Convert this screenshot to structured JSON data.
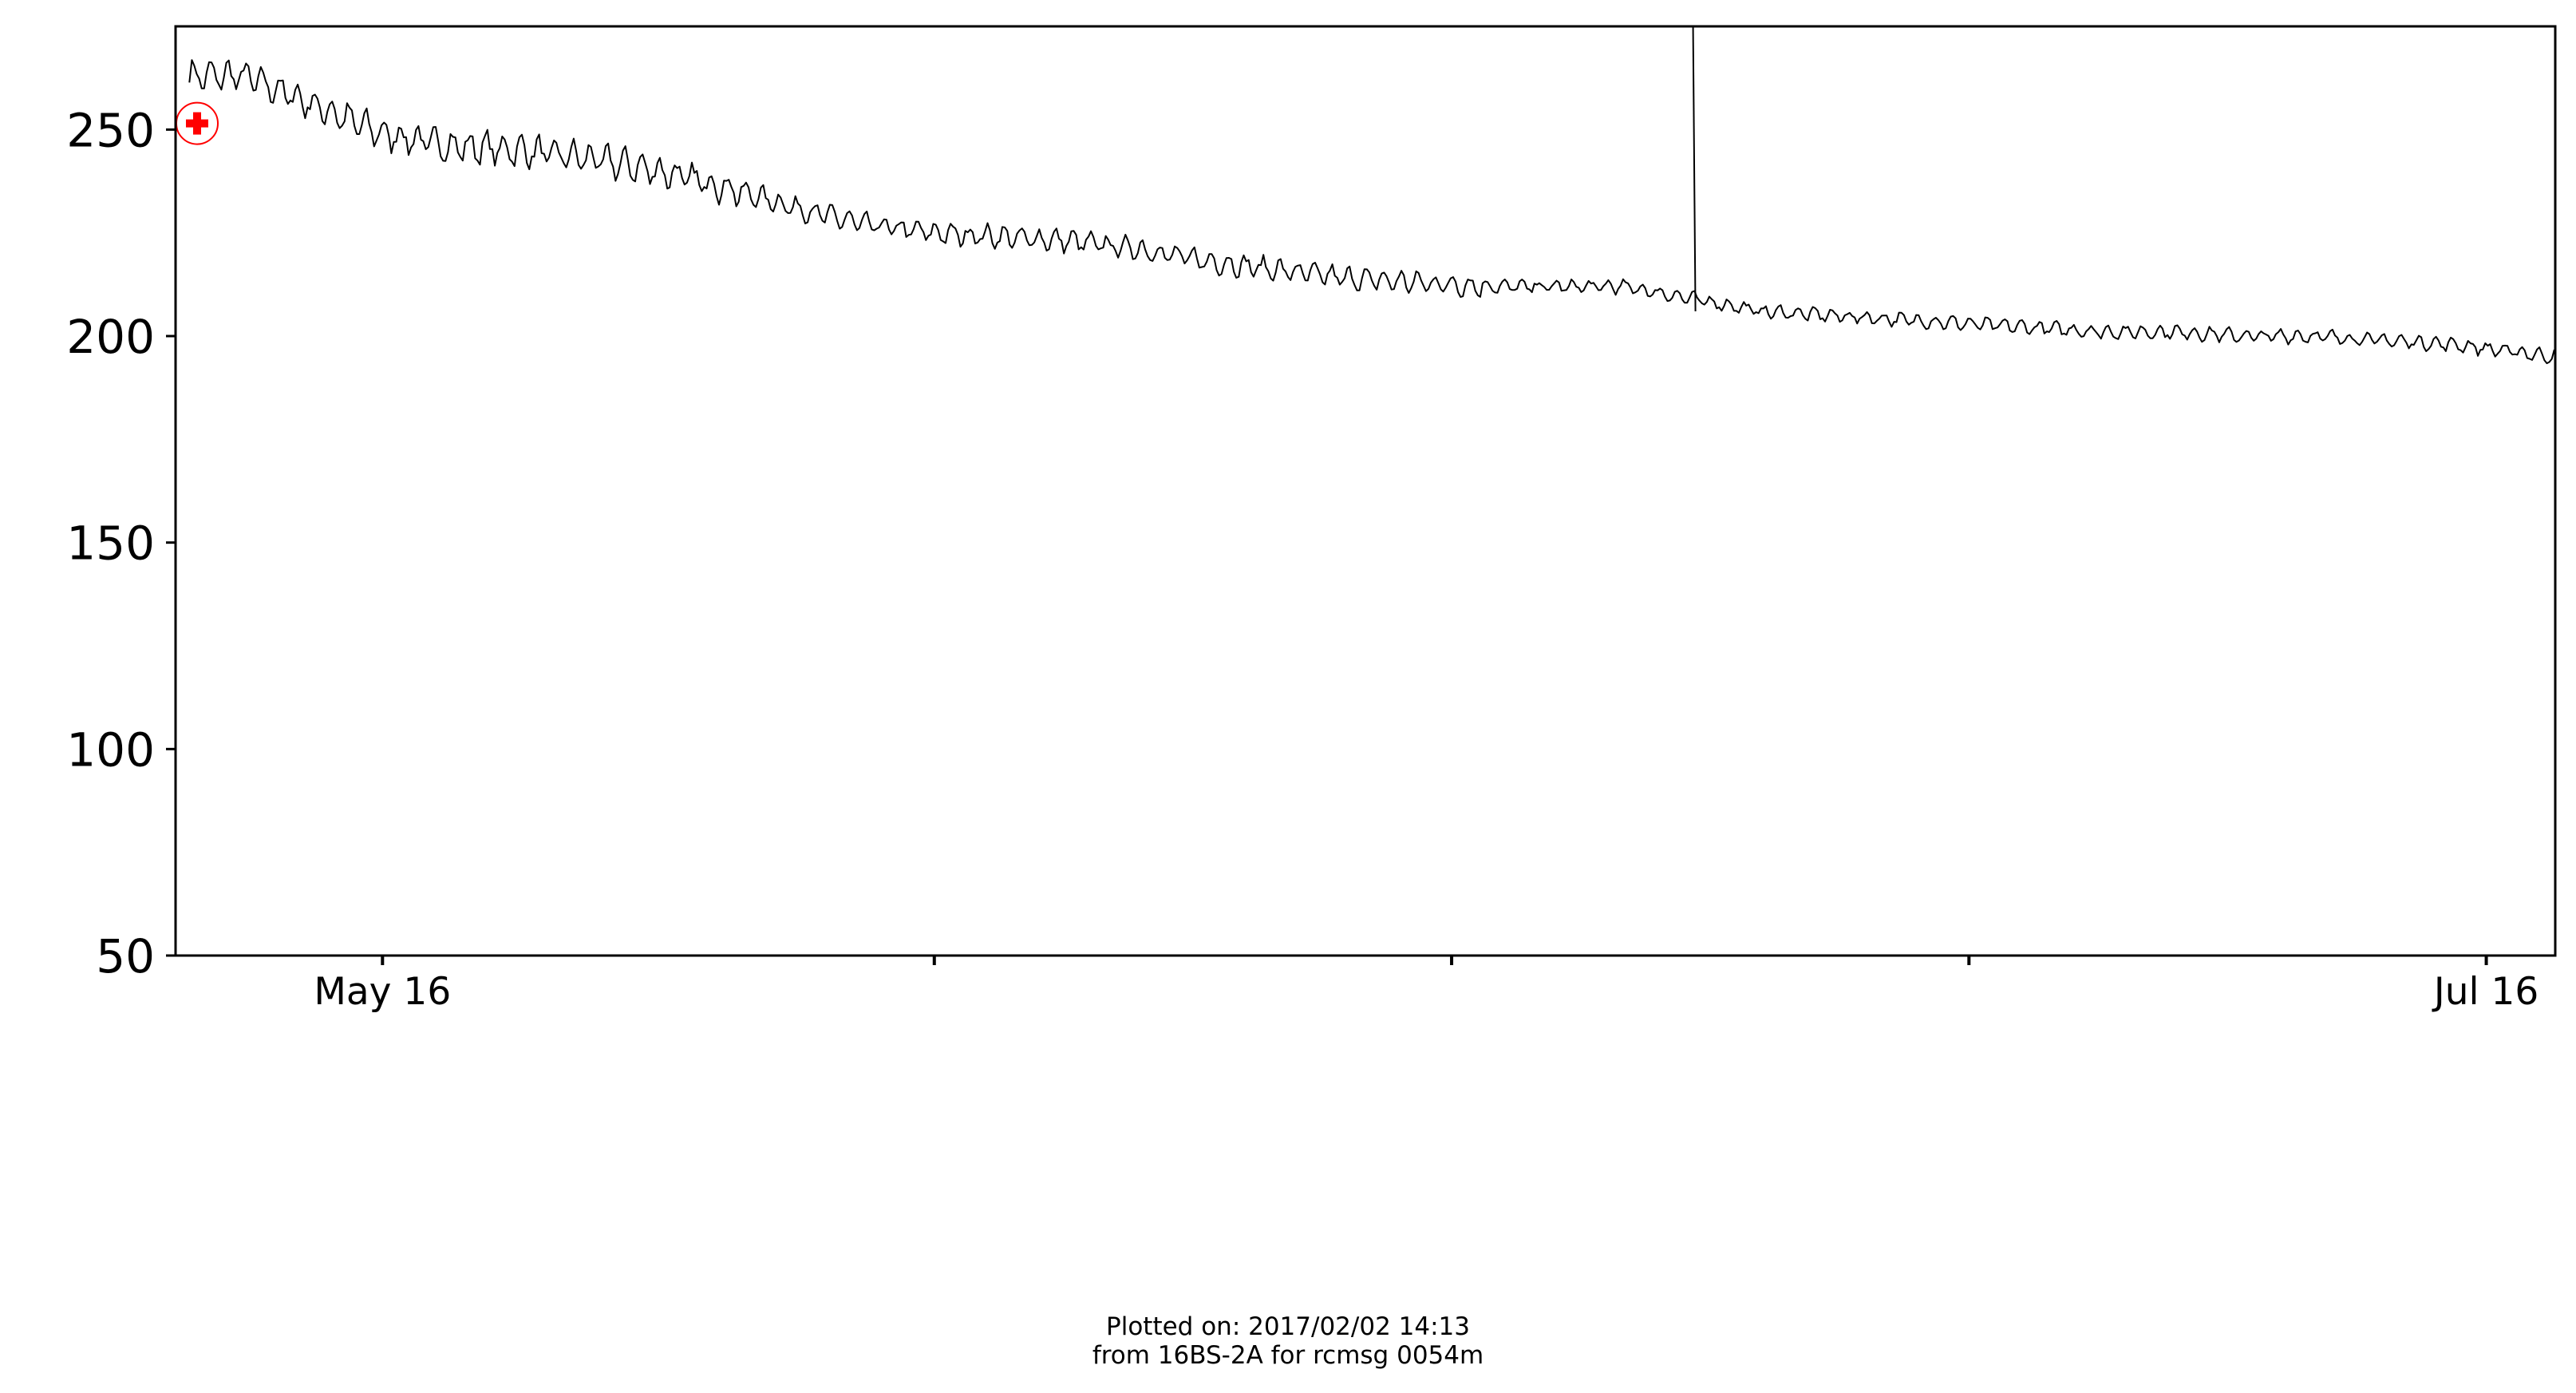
{
  "footer": {
    "line1": "Plotted on: 2017/02/02 14:13",
    "line2": "from 16BS-2A for rcmsg 0054m"
  },
  "chart_data": {
    "type": "line",
    "title": "",
    "xlabel": "",
    "ylabel": "",
    "ylim": [
      50,
      275
    ],
    "xlim": [
      "2016-05-10",
      "2016-07-18"
    ],
    "yticks": [
      50,
      100,
      150,
      200,
      250
    ],
    "xticks": [
      {
        "date": "2016-05-16",
        "label": "May 16"
      },
      {
        "date": "2016-06-01",
        "label": ""
      },
      {
        "date": "2016-06-16",
        "label": ""
      },
      {
        "date": "2016-07-01",
        "label": ""
      },
      {
        "date": "2016-07-16",
        "label": "Jul 16"
      }
    ],
    "grid": false,
    "series": [
      {
        "name": "",
        "color": "#000000",
        "x": [
          "2016-05-10",
          "2016-05-12",
          "2016-05-14",
          "2016-05-16",
          "2016-05-18",
          "2016-05-20",
          "2016-05-22",
          "2016-05-24",
          "2016-05-26",
          "2016-05-28",
          "2016-05-30",
          "2016-06-01",
          "2016-06-03",
          "2016-06-05",
          "2016-06-07",
          "2016-06-09",
          "2016-06-11",
          "2016-06-13",
          "2016-06-15",
          "2016-06-17",
          "2016-06-19",
          "2016-06-21",
          "2016-06-23",
          "2016-06-25",
          "2016-06-27",
          "2016-06-29",
          "2016-07-01",
          "2016-07-03",
          "2016-07-05",
          "2016-07-07",
          "2016-07-09",
          "2016-07-11",
          "2016-07-13",
          "2016-07-15",
          "2016-07-17",
          "2016-07-18"
        ],
        "y": [
          263,
          263,
          256,
          249,
          246,
          245,
          243,
          240,
          236,
          231,
          227,
          225,
          224,
          223,
          221,
          218,
          216,
          214,
          213,
          212,
          212,
          212,
          209,
          206,
          205,
          204,
          203,
          202,
          201,
          201,
          200,
          200,
          199,
          198,
          196,
          195
        ]
      }
    ],
    "spike": {
      "date": "2016-06-23",
      "value_top": 275,
      "value_bottom": 206
    },
    "marker": {
      "date": "2016-05-10",
      "value": 251.5,
      "symbol": "circled-plus",
      "color": "#ff0000"
    }
  }
}
